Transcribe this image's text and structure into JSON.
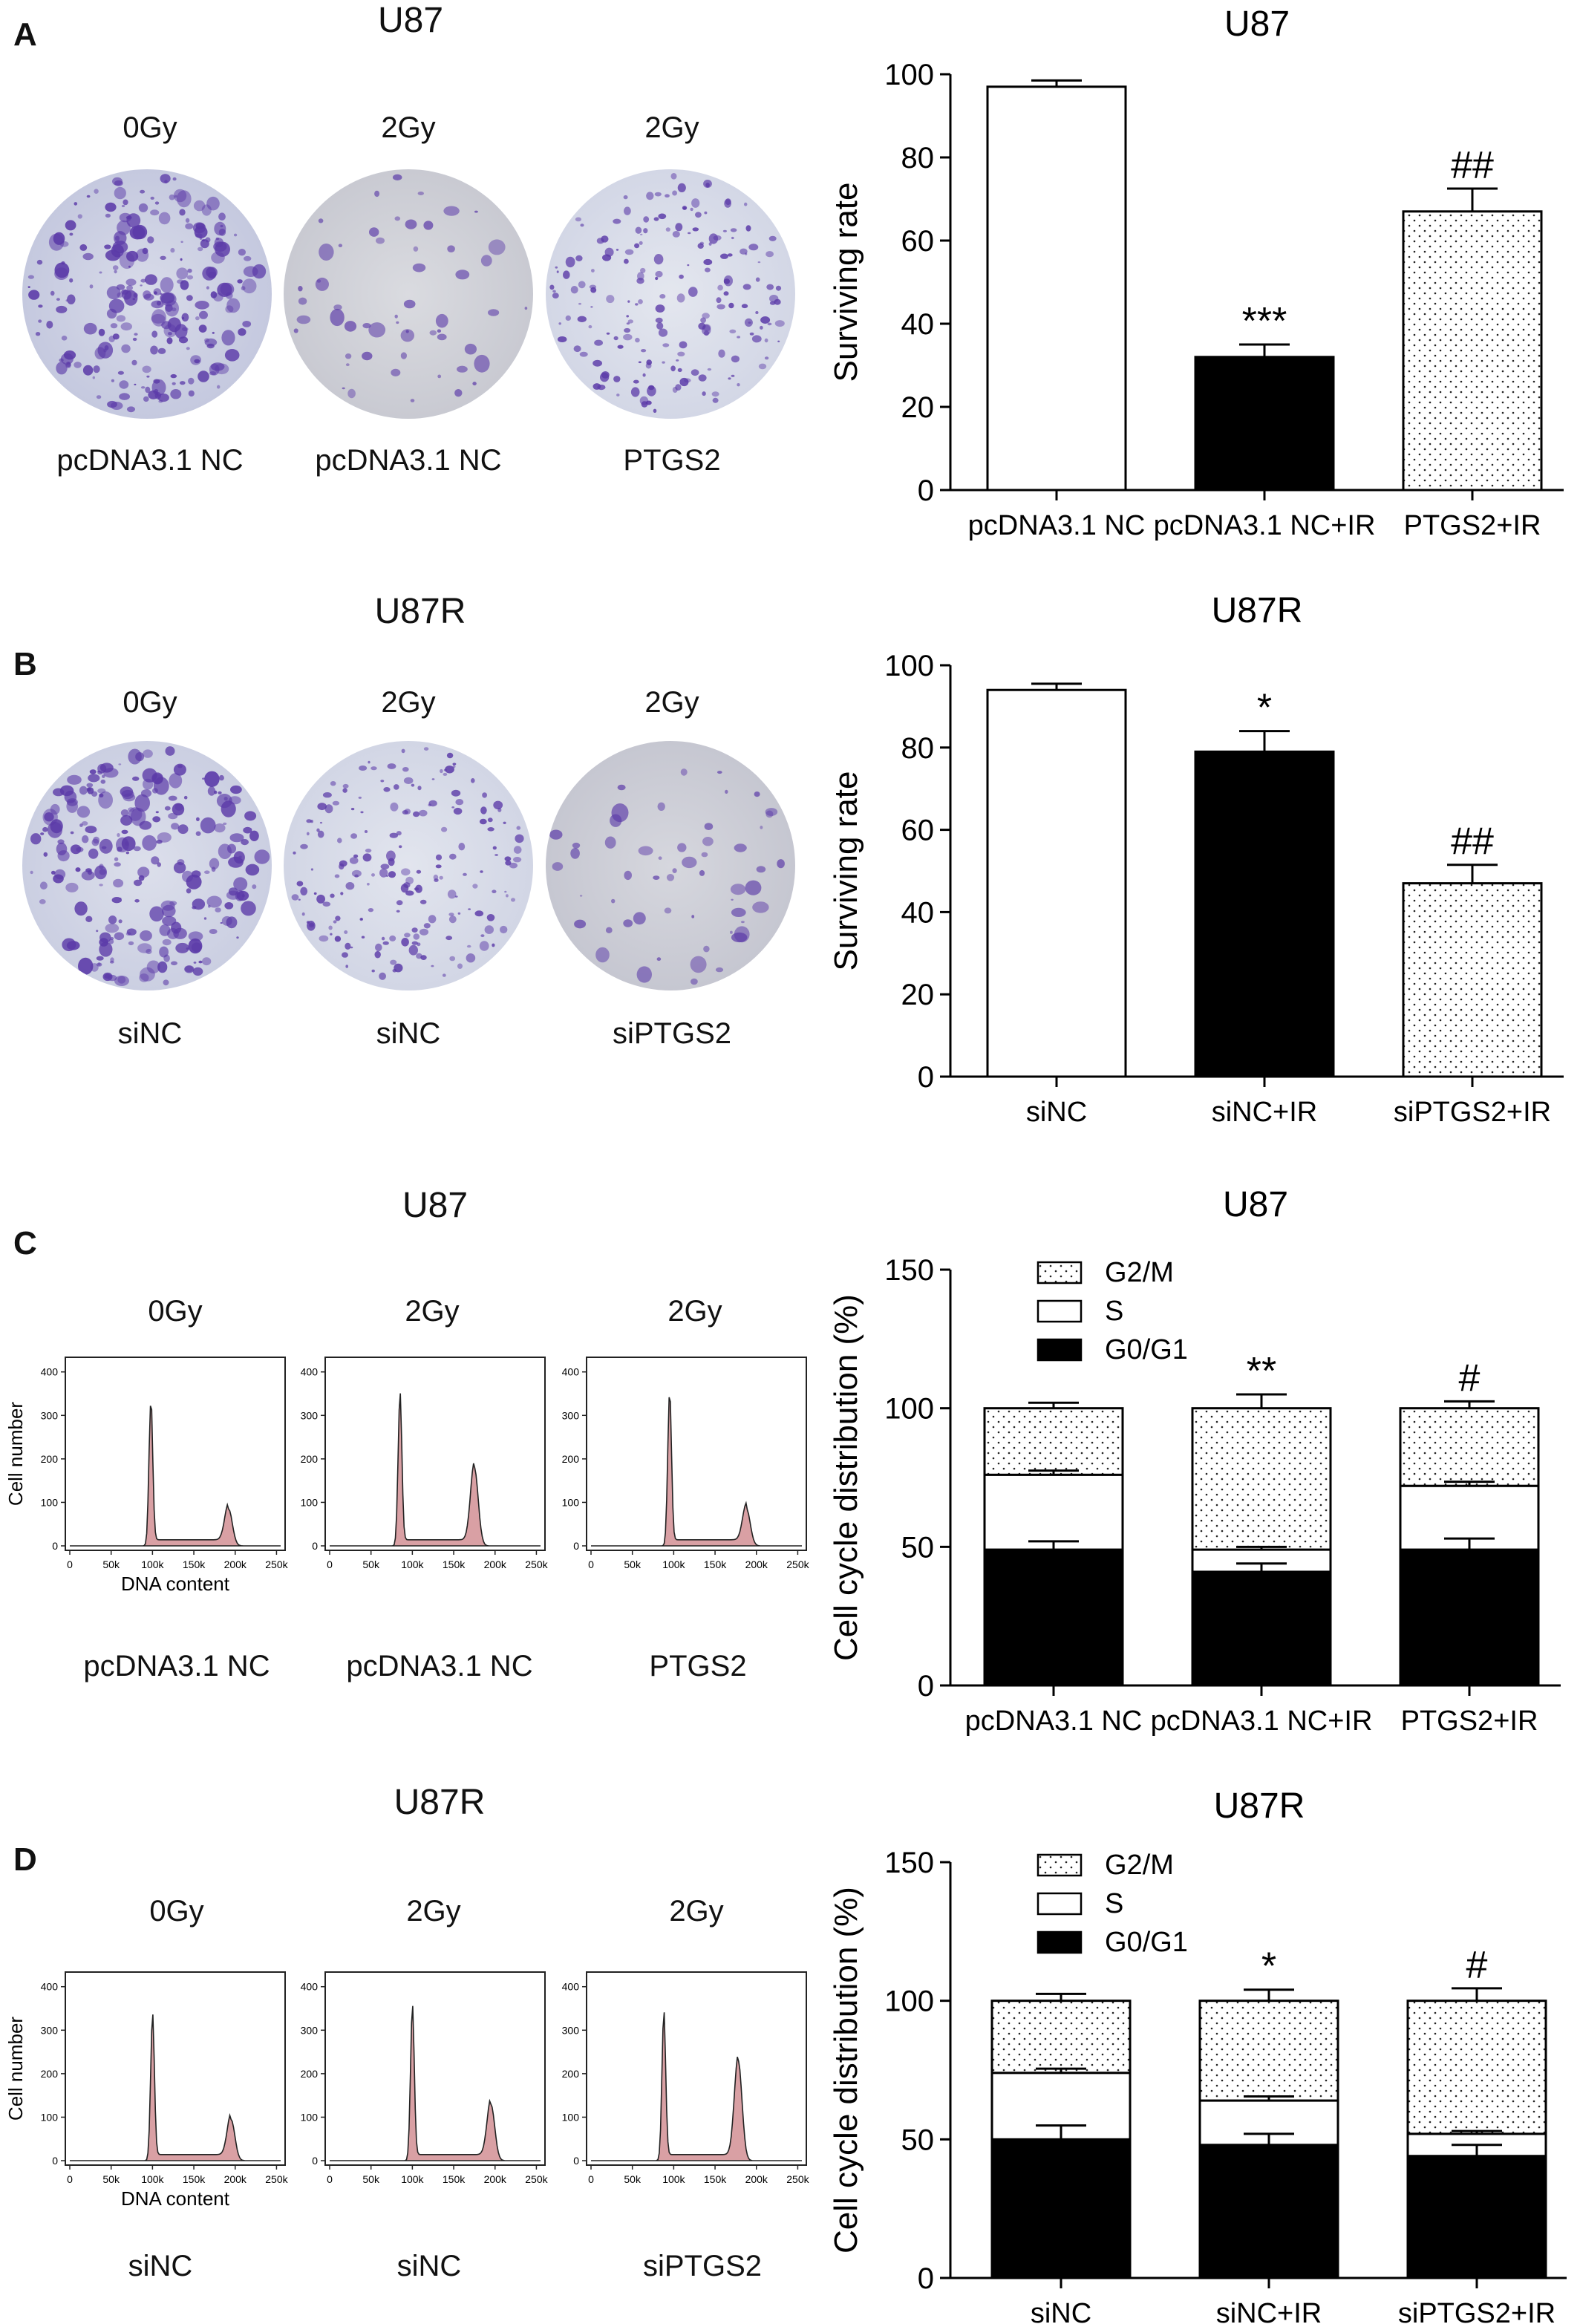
{
  "panels": [
    {
      "letter": "A",
      "cell_line": "U87",
      "conditions": [
        {
          "dose": "0Gy",
          "group": "pcDNA3.1 NC"
        },
        {
          "dose": "2Gy",
          "group": "pcDNA3.1 NC"
        },
        {
          "dose": "2Gy",
          "group": "PTGS2"
        }
      ]
    },
    {
      "letter": "B",
      "cell_line": "U87R",
      "conditions": [
        {
          "dose": "0Gy",
          "group": "siNC"
        },
        {
          "dose": "2Gy",
          "group": "siNC"
        },
        {
          "dose": "2Gy",
          "group": "siPTGS2"
        }
      ]
    },
    {
      "letter": "C",
      "cell_line": "U87",
      "conditions": [
        {
          "dose": "0Gy",
          "group": "pcDNA3.1 NC"
        },
        {
          "dose": "2Gy",
          "group": "pcDNA3.1 NC"
        },
        {
          "dose": "2Gy",
          "group": "PTGS2"
        }
      ]
    },
    {
      "letter": "D",
      "cell_line": "U87R",
      "conditions": [
        {
          "dose": "0Gy",
          "group": "siNC"
        },
        {
          "dose": "2Gy",
          "group": "siNC"
        },
        {
          "dose": "2Gy",
          "group": "siPTGS2"
        }
      ]
    }
  ],
  "flow_axes": {
    "ylabel": "Cell number",
    "xlabel": "DNA content",
    "yticks": [
      "0",
      "100",
      "200",
      "300",
      "400"
    ],
    "xticks": [
      "0",
      "50k",
      "100k",
      "150k",
      "200k",
      "250k"
    ]
  },
  "colors": {
    "bar_dark": "#000000",
    "dish_stain": "#5b3aa8",
    "flow_fill": "#d9a0a4"
  },
  "chart_data": [
    {
      "type": "bar",
      "title": "U87",
      "ylabel": "Surviving rate",
      "ylim": [
        0,
        100
      ],
      "yticks": [
        0,
        20,
        40,
        60,
        80,
        100
      ],
      "categories": [
        "pcDNA3.1 NC",
        "pcDNA3.1 NC+IR",
        "PTGS2+IR"
      ],
      "values": [
        97,
        32,
        67
      ],
      "errors": [
        1.5,
        3,
        5.5
      ],
      "fills": [
        "white",
        "black",
        "dotted"
      ],
      "annotations": [
        "",
        "***",
        "##"
      ]
    },
    {
      "type": "bar",
      "title": "U87R",
      "ylabel": "Surviving rate",
      "ylim": [
        0,
        100
      ],
      "yticks": [
        0,
        20,
        40,
        60,
        80,
        100
      ],
      "categories": [
        "siNC",
        "siNC+IR",
        "siPTGS2+IR"
      ],
      "values": [
        94,
        79,
        47
      ],
      "errors": [
        1.5,
        5,
        4.5
      ],
      "fills": [
        "white",
        "black",
        "dotted"
      ],
      "annotations": [
        "",
        "*",
        "##"
      ]
    },
    {
      "type": "bar",
      "stacked": true,
      "title": "U87",
      "ylabel": "Cell cycle distribution (%)",
      "ylim": [
        0,
        150
      ],
      "yticks": [
        0,
        50,
        100,
        150
      ],
      "categories": [
        "pcDNA3.1 NC",
        "pcDNA3.1 NC+IR",
        "PTGS2+IR"
      ],
      "series": [
        {
          "name": "G0/G1",
          "values": [
            49,
            41,
            49
          ],
          "errors": [
            3,
            3,
            4
          ]
        },
        {
          "name": "S",
          "values": [
            27,
            8,
            23
          ],
          "errors": [
            1.5,
            1,
            1.5
          ]
        },
        {
          "name": "G2/M",
          "values": [
            24,
            51,
            28
          ],
          "errors": [
            2,
            5,
            2.5
          ]
        }
      ],
      "annotations": [
        "",
        "**",
        "#"
      ]
    },
    {
      "type": "bar",
      "stacked": true,
      "title": "U87R",
      "ylabel": "Cell cycle distribution (%)",
      "ylim": [
        0,
        150
      ],
      "yticks": [
        0,
        50,
        100,
        150
      ],
      "categories": [
        "siNC",
        "siNC+IR",
        "siPTGS2+IR"
      ],
      "series": [
        {
          "name": "G0/G1",
          "values": [
            50,
            48,
            44
          ],
          "errors": [
            5,
            4,
            4
          ]
        },
        {
          "name": "S",
          "values": [
            24,
            16,
            8
          ],
          "errors": [
            1.5,
            1.5,
            1
          ]
        },
        {
          "name": "G2/M",
          "values": [
            26,
            36,
            48
          ],
          "errors": [
            2.5,
            4,
            4.5
          ]
        }
      ],
      "annotations": [
        "",
        "*",
        "#"
      ]
    }
  ]
}
